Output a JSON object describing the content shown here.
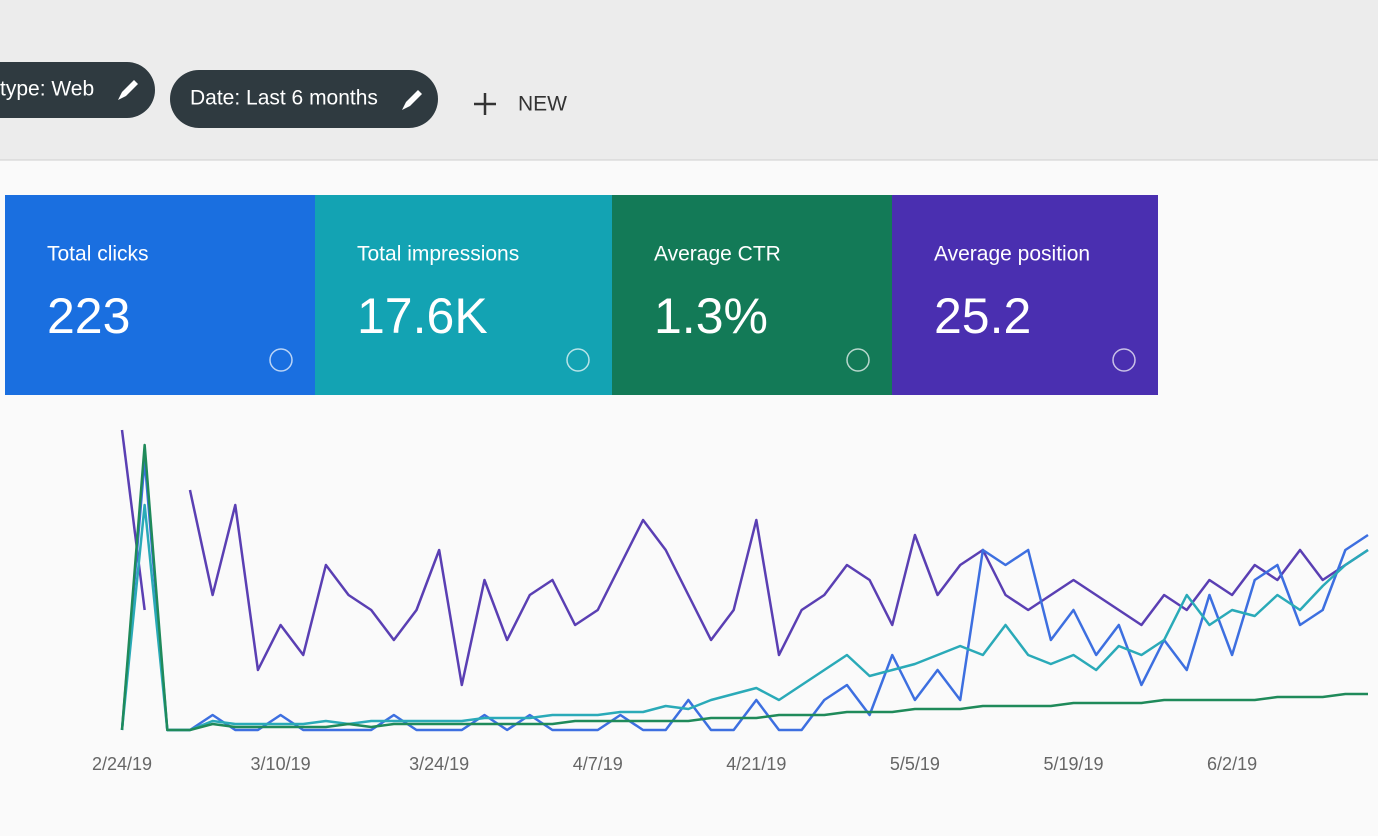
{
  "filters": [
    "type: Web",
    "Date: Last 6 months"
  ],
  "new_button": "NEW",
  "metrics": [
    {
      "label": "Total clicks",
      "value": "223",
      "color": "#1a6fe0"
    },
    {
      "label": "Total impressions",
      "value": "17.6K",
      "color": "#13a3b3"
    },
    {
      "label": "Average CTR",
      "value": "1.3%",
      "color": "#137a57"
    },
    {
      "label": "Average position",
      "value": "25.2",
      "color": "#4a2fb0"
    }
  ],
  "chart_data": {
    "type": "line",
    "categories": [
      "2/24/19",
      null,
      null,
      null,
      null,
      null,
      null,
      "3/10/19",
      null,
      null,
      null,
      null,
      null,
      null,
      "3/24/19",
      null,
      null,
      null,
      null,
      null,
      null,
      "4/7/19",
      null,
      null,
      null,
      null,
      null,
      null,
      "4/21/19",
      null,
      null,
      null,
      null,
      null,
      null,
      "5/5/19",
      null,
      null,
      null,
      null,
      null,
      null,
      "5/19/19",
      null,
      null,
      null,
      null,
      null,
      null,
      "6/2/19",
      null,
      null,
      null,
      null,
      null,
      null
    ],
    "ylim": [
      0,
      100
    ],
    "series": [
      {
        "color": "#5a3fb3",
        "values": [
          100,
          40,
          null,
          80,
          45,
          75,
          20,
          35,
          25,
          55,
          45,
          40,
          30,
          40,
          60,
          15,
          50,
          30,
          45,
          50,
          35,
          40,
          55,
          70,
          60,
          45,
          30,
          40,
          70,
          25,
          40,
          45,
          55,
          50,
          35,
          65,
          45,
          55,
          60,
          45,
          40,
          45,
          50,
          45,
          40,
          35,
          45,
          40,
          50,
          45,
          55,
          50,
          60,
          50,
          55,
          60
        ]
      },
      {
        "color": "#3d6fe0",
        "values": [
          0,
          90,
          0,
          0,
          5,
          0,
          0,
          5,
          0,
          0,
          0,
          0,
          5,
          0,
          0,
          0,
          5,
          0,
          5,
          0,
          0,
          0,
          5,
          0,
          0,
          10,
          0,
          0,
          10,
          0,
          0,
          10,
          15,
          5,
          25,
          10,
          20,
          10,
          60,
          55,
          60,
          30,
          40,
          25,
          35,
          15,
          30,
          20,
          45,
          25,
          50,
          55,
          35,
          40,
          60,
          65
        ]
      },
      {
        "color": "#2aaab8",
        "values": [
          0,
          75,
          0,
          0,
          3,
          2,
          2,
          2,
          2,
          3,
          2,
          3,
          3,
          3,
          3,
          3,
          4,
          4,
          4,
          5,
          5,
          5,
          6,
          6,
          8,
          7,
          10,
          12,
          14,
          10,
          15,
          20,
          25,
          18,
          20,
          22,
          25,
          28,
          25,
          35,
          25,
          22,
          25,
          20,
          28,
          25,
          30,
          45,
          35,
          40,
          38,
          45,
          40,
          48,
          55,
          60
        ]
      },
      {
        "color": "#1f8a5a",
        "values": [
          0,
          95,
          0,
          0,
          2,
          1,
          1,
          1,
          1,
          1,
          2,
          1,
          2,
          2,
          2,
          2,
          2,
          2,
          2,
          2,
          3,
          3,
          3,
          3,
          3,
          3,
          4,
          4,
          4,
          5,
          5,
          5,
          6,
          6,
          6,
          7,
          7,
          7,
          8,
          8,
          8,
          8,
          9,
          9,
          9,
          9,
          10,
          10,
          10,
          10,
          10,
          11,
          11,
          11,
          12,
          12
        ]
      }
    ]
  }
}
